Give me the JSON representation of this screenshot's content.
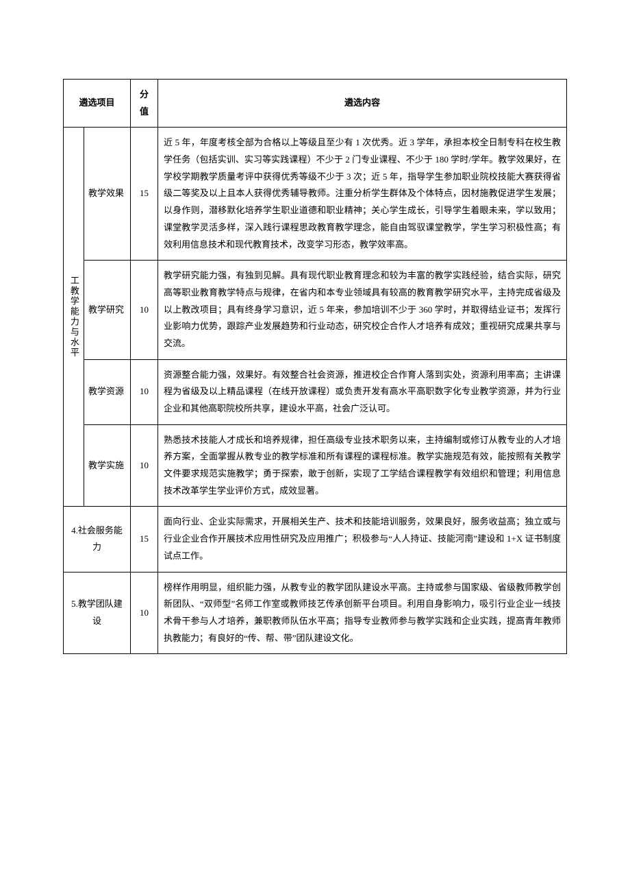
{
  "headers": {
    "item": "遴选项目",
    "score": "分值",
    "content": "遴选内容"
  },
  "group": {
    "title": "工教学能力与水平"
  },
  "rows": [
    {
      "sub": "教学效果",
      "score": "15",
      "content": "近 5 年，年度考核全部为合格以上等级且至少有 1 次优秀。近 3 学年，承担本校全日制专科在校生教学任务（包括实训、实习等实践课程）不少于 2 门专业课程、不少于 180 学时/学年。教学效果好，在学校学期教学质量考评中获得优秀等级不少于 3 次；近 5 年，指导学生参加职业院校技能大赛获得省级二等奖及以上且本人获得优秀辅导教师。注重分析学生群体及个体特点，因材施教促进学生发展；以身作则，潜移默化培养学生职业道德和职业精神；关心学生成长，引导学生着眼未来，学以致用；课堂教学灵活多样，深入践行课程思政教育教学理念，能自由驾驭课堂教学，学生学习积极性高；有效利用信息技术和现代教育技术，改变学习形态，教学效率高。"
    },
    {
      "sub": "教学研究",
      "score": "10",
      "content": "教学研究能力强，有独到见解。具有现代职业教育理念和较为丰富的教学实践经验，结合实际，研究高等职业教育教学特点与规律，在省内和本专业领域具有较高的教育教学研究水平，主持完成省级及以上教改项目；具有终身学习意识，近 5 年来，参加培训不少于 360 学时，并取得结业证书；发挥行业影响力优势，跟踪产业发展趋势和行业动态，研究校企合作人才培养有成效；重视研究成果共享与交流。"
    },
    {
      "sub": "教学资源",
      "score": "10",
      "content": "资源整合能力强，效果好。有效整合社会资源，推进校企合作育人落到实处，资源利用率高；主讲课程为省级及以上精品课程（在线开放课程）或负责开发有高水平高职数字化专业教学资源，并为行业企业和其他高职院校所共享，建设水平高，社会广泛认可。"
    },
    {
      "sub": "教学实施",
      "score": "10",
      "content": "熟悉技术技能人才成长和培养规律，担任高级专业技术职务以来，主持编制或修订从教专业的人才培养方案，全面掌握从教专业的教学标准和所有课程的课程标准。教学实施规范有效，能按照有关教学文件要求规范实施教学；勇于探索，敢于创新，实现了工学结合课程教学有效组织和管理；利用信息技术改革学生学业评价方式，成效显著。"
    }
  ],
  "rows2": [
    {
      "label": "4.社会服务能力",
      "score": "15",
      "content": "面向行业、企业实际需求，开展相关生产、技术和技能培训服务，效果良好，服务收益高；独立或与行业企业合作开展技术应用性研究及应用推广；积极参与“人人持证、技能河南”建设和 1+X 证书制度试点工作。"
    },
    {
      "label": "5.教学团队建设",
      "score": "10",
      "content": "榜样作用明显，组织能力强，从教专业的教学团队建设水平高。主持或参与国家级、省级教师教学创新团队、“双师型”名师工作室或教师技艺传承创新平台项目。利用自身影响力，吸引行业企业一线技术骨干参与人才培养，兼职教师队伍水平高；指导专业教师参与教学实践和企业实践，提高青年教师执教能力；有良好的“传、帮、带”团队建设文化。"
    }
  ]
}
